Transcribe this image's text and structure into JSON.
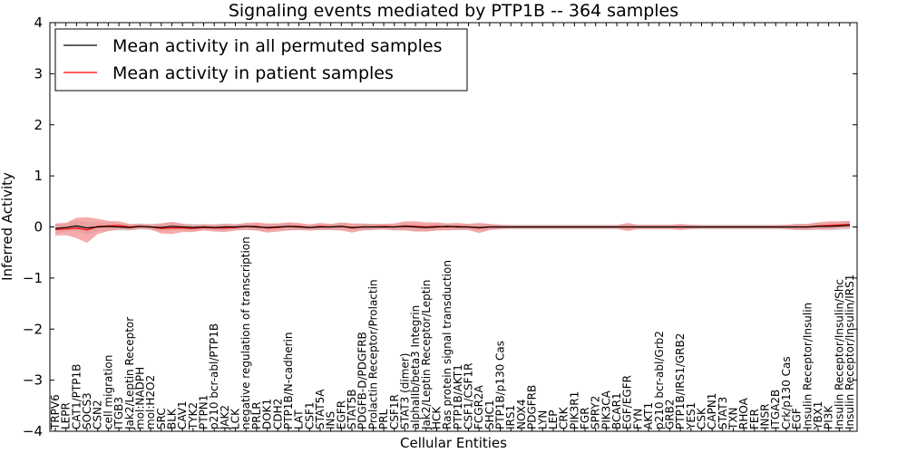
{
  "chart_data": {
    "type": "line",
    "title": "Signaling events mediated by PTP1B -- 364 samples",
    "xlabel": "Cellular Entities",
    "ylabel": "Inferred Activity",
    "ylim": [
      -4,
      4
    ],
    "yticks": [
      -4,
      -3,
      -2,
      -1,
      0,
      1,
      2,
      3,
      4
    ],
    "ytick_labels": [
      "−4",
      "−3",
      "−2",
      "−1",
      "0",
      "1",
      "2",
      "3",
      "4"
    ],
    "legend_position": "top-left",
    "colors": {
      "permuted": "#000000",
      "patient": "#ff0000",
      "patient_band": "#f08080",
      "permuted_band": "#c8c8c8"
    },
    "categories": [
      "TRPV6",
      "LEPR",
      "CAT1/PTP1B",
      "SOCS3",
      "CSN2",
      "cell migration",
      "ITGB3",
      "Jak2/Leptin Receptor",
      "mol:NADPH",
      "mol:H2O2",
      "SRC",
      "BLK",
      "CAV1",
      "TYK2",
      "PTPN1",
      "p210 bcr-abl/PTP1B",
      "JAK2",
      "LCK",
      "negative regulation of transcription",
      "PRLR",
      "DOK1",
      "CDH2",
      "PTP1B/N-cadherin",
      "LAT",
      "CSF1",
      "STAT5A",
      "INS",
      "EGFR",
      "STAT5B",
      "PDGFB-D/PDGFRB",
      "Prolactin Receptor/Prolactin",
      "PRL",
      "CSF1R",
      "STAT3 (dimer)",
      "alphaIIb/beta3 Integrin",
      "Jak2/Leptin Receptor/Leptin",
      "HCK",
      "Ras protein signal transduction",
      "PTP1B/AKT1",
      "CSF1/CSF1R",
      "FCGR2A",
      "SHC1",
      "PTP1B/p130 Cas",
      "IRS1",
      "NOX4",
      "PDGFRB",
      "LYN",
      "LEP",
      "CRK",
      "PIK3R1",
      "FGR",
      "SPRY2",
      "PIK3CA",
      "BCAR1",
      "EGF/EGFR",
      "FYN",
      "AKT1",
      "p210 bcr-abl/Grb2",
      "GRB2",
      "PTP1B/IRS1/GRB2",
      "YES1",
      "CSK",
      "CAPN1",
      "STAT3",
      "TXN",
      "RHOA",
      "FER",
      "INSR",
      "ITGA2B",
      "Crk/p130 Cas",
      "EGF",
      "Insulin Receptor/Insulin",
      "YBX1",
      "PI3K",
      "Insulin Receptor/Insulin/Shc",
      "Insulin Receptor/Insulin/IRS1"
    ],
    "series": [
      {
        "name": "Mean activity in all permuted samples",
        "values": [
          -0.03,
          -0.01,
          0.02,
          -0.02,
          0.0,
          0.01,
          0.0,
          -0.01,
          0.01,
          0.0,
          -0.01,
          0.01,
          0.0,
          -0.01,
          0.0,
          -0.01,
          0.0,
          0.0,
          0.01,
          0.0,
          -0.01,
          0.0,
          0.01,
          0.0,
          -0.01,
          0.0,
          0.0,
          0.01,
          -0.01,
          0.0,
          0.0,
          0.0,
          0.0,
          0.01,
          0.0,
          -0.01,
          0.0,
          0.01,
          0.0,
          0.0,
          -0.01,
          0.0,
          0.0,
          0.0,
          0.0,
          0.0,
          0.0,
          0.0,
          0.0,
          0.0,
          0.0,
          0.0,
          0.0,
          0.0,
          0.0,
          0.0,
          0.0,
          0.0,
          0.0,
          0.0,
          0.0,
          0.0,
          0.0,
          0.0,
          0.0,
          0.0,
          0.0,
          0.0,
          0.0,
          0.0,
          0.0,
          0.0,
          0.01,
          0.01,
          0.02,
          0.03
        ]
      },
      {
        "name": "Mean activity in patient samples",
        "values": [
          -0.05,
          -0.04,
          -0.02,
          -0.06,
          0.01,
          0.02,
          0.03,
          0.0,
          0.01,
          0.0,
          -0.03,
          -0.02,
          -0.02,
          -0.03,
          -0.01,
          -0.02,
          -0.02,
          -0.01,
          0.01,
          0.01,
          -0.02,
          -0.01,
          0.01,
          0.01,
          -0.01,
          0.01,
          0.0,
          0.01,
          -0.02,
          0.0,
          0.0,
          0.01,
          0.0,
          0.02,
          0.01,
          0.0,
          0.01,
          0.0,
          0.01,
          0.0,
          -0.02,
          0.0,
          0.0,
          0.0,
          0.0,
          0.0,
          0.0,
          0.0,
          0.0,
          0.0,
          0.0,
          0.0,
          0.0,
          0.0,
          0.0,
          0.0,
          0.0,
          0.0,
          0.0,
          0.0,
          0.0,
          0.0,
          0.0,
          0.0,
          0.0,
          0.0,
          0.0,
          0.0,
          0.0,
          0.0,
          0.0,
          0.0,
          0.02,
          0.03,
          0.04,
          0.05
        ]
      }
    ],
    "patient_spread": [
      0.12,
      0.12,
      0.2,
      0.25,
      0.15,
      0.1,
      0.08,
      0.06,
      0.05,
      0.05,
      0.1,
      0.12,
      0.08,
      0.07,
      0.06,
      0.07,
      0.08,
      0.06,
      0.07,
      0.08,
      0.09,
      0.08,
      0.08,
      0.07,
      0.06,
      0.07,
      0.06,
      0.08,
      0.09,
      0.07,
      0.06,
      0.05,
      0.07,
      0.09,
      0.1,
      0.09,
      0.08,
      0.07,
      0.07,
      0.06,
      0.1,
      0.06,
      0.04,
      0.03,
      0.03,
      0.03,
      0.03,
      0.03,
      0.03,
      0.03,
      0.03,
      0.03,
      0.03,
      0.03,
      0.08,
      0.04,
      0.04,
      0.04,
      0.04,
      0.06,
      0.04,
      0.03,
      0.03,
      0.03,
      0.03,
      0.03,
      0.03,
      0.03,
      0.03,
      0.04,
      0.06,
      0.06,
      0.07,
      0.08,
      0.07,
      0.07
    ],
    "permuted_spread": [
      0.09,
      0.08,
      0.1,
      0.12,
      0.09,
      0.08,
      0.07,
      0.06,
      0.06,
      0.06,
      0.08,
      0.08,
      0.07,
      0.07,
      0.06,
      0.06,
      0.07,
      0.06,
      0.06,
      0.07,
      0.07,
      0.07,
      0.07,
      0.06,
      0.06,
      0.06,
      0.06,
      0.07,
      0.07,
      0.06,
      0.06,
      0.06,
      0.06,
      0.07,
      0.07,
      0.07,
      0.07,
      0.06,
      0.06,
      0.06,
      0.07,
      0.06,
      0.05,
      0.05,
      0.05,
      0.05,
      0.05,
      0.05,
      0.05,
      0.05,
      0.05,
      0.05,
      0.05,
      0.05,
      0.06,
      0.05,
      0.05,
      0.05,
      0.05,
      0.05,
      0.05,
      0.05,
      0.05,
      0.05,
      0.05,
      0.05,
      0.05,
      0.05,
      0.05,
      0.05,
      0.06,
      0.06,
      0.07,
      0.08,
      0.08,
      0.08
    ]
  }
}
